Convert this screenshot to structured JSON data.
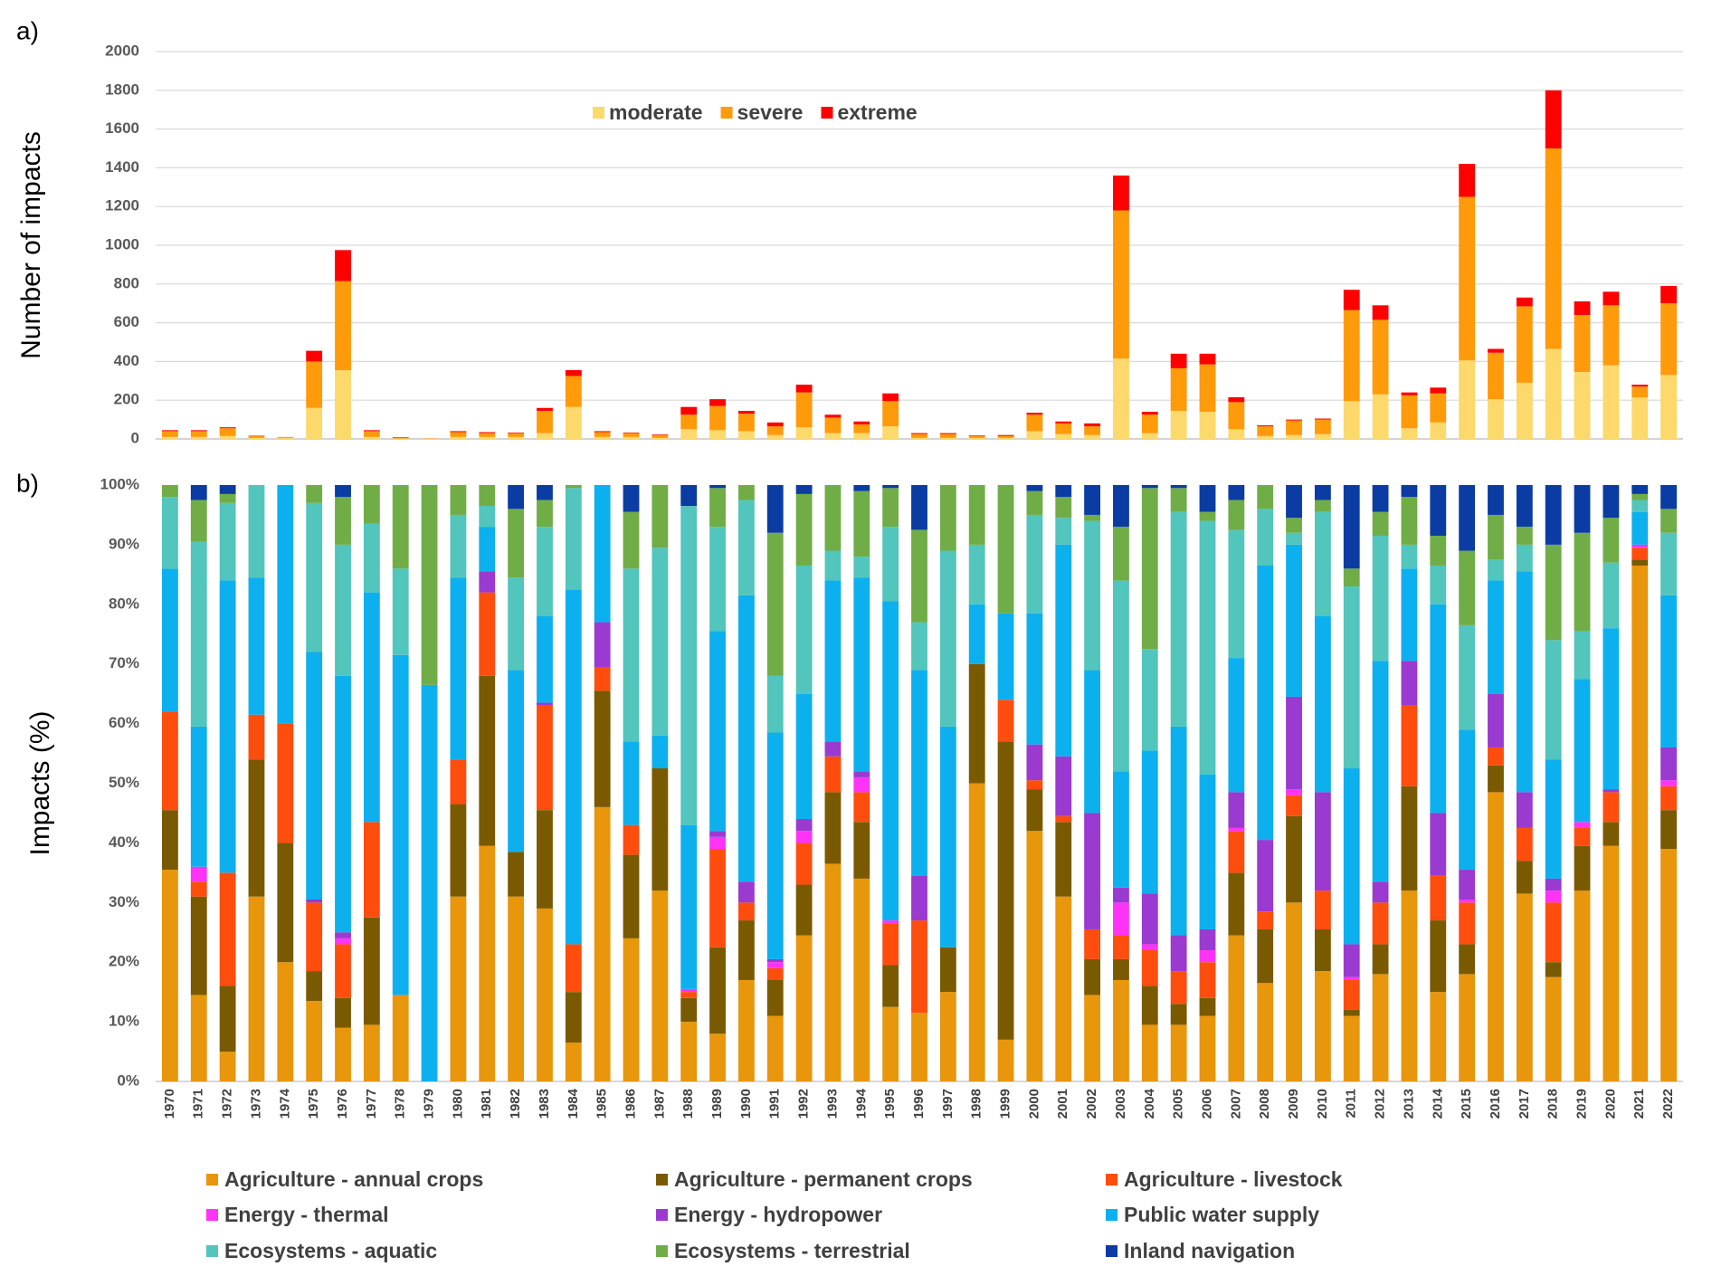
{
  "chart_data": [
    {
      "type": "bar",
      "stacked": true,
      "panel_label": "a)",
      "y_label": "Number of impacts",
      "ylim": [
        0,
        2000
      ],
      "yticks": [
        0,
        200,
        400,
        600,
        800,
        1000,
        1200,
        1400,
        1600,
        1800,
        2000
      ],
      "grid": true,
      "legend": "top",
      "series": [
        {
          "name": "moderate",
          "color": "#fdd86a",
          "values": [
            10,
            10,
            15,
            5,
            5,
            160,
            355,
            10,
            2,
            0,
            10,
            10,
            10,
            30,
            165,
            10,
            10,
            5,
            50,
            45,
            40,
            20,
            60,
            30,
            30,
            65,
            5,
            5,
            5,
            5,
            40,
            25,
            20,
            415,
            30,
            145,
            140,
            50,
            15,
            20,
            25,
            195,
            230,
            55,
            85,
            405,
            205,
            290,
            465,
            345,
            380,
            215,
            330
          ]
        },
        {
          "name": "severe",
          "color": "#ff9a0a",
          "values": [
            30,
            30,
            40,
            10,
            5,
            240,
            460,
            30,
            5,
            2,
            25,
            20,
            20,
            115,
            160,
            25,
            20,
            15,
            75,
            125,
            90,
            45,
            180,
            80,
            45,
            130,
            20,
            20,
            10,
            10,
            85,
            55,
            45,
            765,
            95,
            220,
            245,
            140,
            50,
            75,
            75,
            470,
            385,
            170,
            150,
            845,
            240,
            395,
            1035,
            295,
            310,
            55,
            370
          ]
        },
        {
          "name": "extreme",
          "color": "#ff0000",
          "values": [
            5,
            5,
            5,
            2,
            0,
            55,
            160,
            5,
            2,
            0,
            5,
            5,
            3,
            15,
            30,
            5,
            3,
            3,
            40,
            35,
            15,
            20,
            40,
            15,
            15,
            40,
            5,
            5,
            3,
            5,
            10,
            10,
            15,
            180,
            15,
            75,
            55,
            25,
            5,
            5,
            5,
            105,
            75,
            15,
            30,
            170,
            20,
            45,
            300,
            70,
            70,
            10,
            90
          ]
        }
      ]
    },
    {
      "type": "bar",
      "stacked": true,
      "panel_label": "b)",
      "y_label": "Impacts (%)",
      "categories": [
        "1970",
        "1971",
        "1972",
        "1973",
        "1974",
        "1975",
        "1976",
        "1977",
        "1978",
        "1979",
        "1980",
        "1981",
        "1982",
        "1983",
        "1984",
        "1985",
        "1986",
        "1987",
        "1988",
        "1989",
        "1990",
        "1991",
        "1992",
        "1993",
        "1994",
        "1995",
        "1996",
        "1997",
        "1998",
        "1999",
        "2000",
        "2001",
        "2002",
        "2003",
        "2004",
        "2005",
        "2006",
        "2007",
        "2008",
        "2009",
        "2010",
        "2011",
        "2012",
        "2013",
        "2014",
        "2015",
        "2016",
        "2017",
        "2018",
        "2019",
        "2020",
        "2021",
        "2022"
      ],
      "ylim": [
        0,
        100
      ],
      "yticks": [
        {
          "value": 0,
          "label": "0%"
        },
        {
          "value": 10,
          "label": "10%"
        },
        {
          "value": 20,
          "label": "20%"
        },
        {
          "value": 30,
          "label": "30%"
        },
        {
          "value": 40,
          "label": "40%"
        },
        {
          "value": 50,
          "label": "50%"
        },
        {
          "value": 60,
          "label": "60%"
        },
        {
          "value": 70,
          "label": "70%"
        },
        {
          "value": 80,
          "label": "80%"
        },
        {
          "value": 90,
          "label": "90%"
        },
        {
          "value": 100,
          "label": "100%"
        }
      ],
      "grid": false,
      "legend": "bottom",
      "series": [
        {
          "name": "Agriculture - annual crops",
          "color": "#e8960c",
          "values": [
            35.5,
            14.5,
            5,
            31,
            20,
            13.5,
            9,
            9.5,
            14.5,
            0,
            31,
            39.5,
            31,
            29,
            6.5,
            46,
            24,
            32,
            10,
            8,
            17,
            11,
            24.5,
            36.5,
            34,
            12.5,
            11.5,
            15,
            50,
            7,
            42,
            31,
            14.5,
            17,
            9.5,
            9.5,
            11,
            24.5,
            16.5,
            30,
            18.5,
            11,
            18,
            32,
            15,
            18,
            48.5,
            31.5,
            17.5,
            32,
            39.5,
            86.5,
            39
          ]
        },
        {
          "name": "Agriculture - permanent crops",
          "color": "#7a5a00",
          "values": [
            10,
            16.5,
            11,
            23,
            20,
            5,
            5,
            18,
            0,
            0,
            15.5,
            28.5,
            7.5,
            16.5,
            8.5,
            19.5,
            14,
            20.5,
            4,
            14.5,
            10,
            6,
            8.5,
            12,
            9.5,
            7,
            0,
            7.5,
            20,
            50,
            7,
            12.5,
            6,
            3.5,
            6.5,
            3.5,
            3,
            10.5,
            9,
            14.5,
            7,
            1,
            5,
            17.5,
            12,
            5,
            4.5,
            5.5,
            2.5,
            7.5,
            4,
            1,
            6.5
          ]
        },
        {
          "name": "Agriculture - livestock",
          "color": "#ff4d0d",
          "values": [
            16.5,
            2.5,
            19,
            7.5,
            20,
            11.5,
            9,
            16,
            0,
            0,
            7.5,
            14,
            0,
            17.5,
            8,
            4,
            5,
            0,
            1,
            16.5,
            3,
            2,
            7,
            6,
            5,
            7,
            15.5,
            0,
            0,
            7,
            1.5,
            1,
            5,
            4,
            6,
            5.5,
            6,
            7,
            3,
            3.5,
            6.5,
            5,
            7,
            13.5,
            7.5,
            7,
            3,
            5.5,
            10,
            3,
            5,
            2,
            4
          ]
        },
        {
          "name": "Energy - thermal",
          "color": "#ff33f5",
          "values": [
            0,
            2.5,
            0,
            0,
            0,
            0,
            1,
            0,
            0,
            0,
            0,
            0,
            0,
            0,
            0,
            0,
            0,
            0,
            0.5,
            2,
            0,
            1,
            2,
            0,
            2.5,
            0.5,
            0,
            0,
            0,
            0,
            0,
            0,
            0,
            5.5,
            1,
            0,
            2,
            0.5,
            0,
            1,
            0,
            0.5,
            0,
            0,
            0,
            0.5,
            0,
            0,
            2,
            1,
            0,
            0.5,
            1
          ]
        },
        {
          "name": "Energy - hydropower",
          "color": "#9a3ad0",
          "values": [
            0,
            0,
            0,
            0,
            0,
            0.5,
            1,
            0,
            0,
            0,
            0,
            3.5,
            0,
            0.5,
            0,
            7.5,
            0,
            0,
            0,
            1,
            3.5,
            0.5,
            2,
            2.5,
            1,
            0,
            7.5,
            0,
            0,
            0,
            6,
            10,
            19.5,
            2.5,
            8.5,
            6,
            3.5,
            6,
            12,
            15.5,
            16.5,
            5.5,
            3.5,
            7.5,
            10.5,
            5,
            9,
            6,
            2,
            0,
            0.5,
            0,
            5.5
          ]
        },
        {
          "name": "Public water supply",
          "color": "#0db0ee",
          "values": [
            24,
            23.5,
            49,
            23,
            40,
            41.5,
            43,
            38.5,
            57,
            66.5,
            30.5,
            7.5,
            30.5,
            14.5,
            59.5,
            23,
            14,
            5.5,
            27.5,
            33.5,
            48,
            38,
            21,
            27,
            32.5,
            53.5,
            34.5,
            37,
            10,
            14.5,
            22,
            35.5,
            24,
            19.5,
            24,
            35,
            26,
            22.5,
            46,
            25.5,
            29.5,
            29.5,
            37,
            15.5,
            35,
            23.5,
            19,
            37,
            20,
            24,
            27,
            5.5,
            25.5
          ]
        },
        {
          "name": "Ecosystems - aquatic",
          "color": "#52c5bd",
          "values": [
            12,
            31,
            13,
            15.5,
            0,
            25,
            22,
            11.5,
            14.5,
            0,
            10.5,
            3.5,
            15.5,
            15,
            17,
            0,
            29,
            31.5,
            53.5,
            17.5,
            16,
            9.5,
            21.5,
            5,
            3.5,
            12.5,
            8,
            29.5,
            10,
            0,
            16.5,
            4.5,
            25,
            32,
            17,
            36,
            42.5,
            21.5,
            9.5,
            2,
            17.5,
            30.5,
            21,
            4,
            6.5,
            17.5,
            3.5,
            4.5,
            20,
            8,
            11,
            2,
            10.5
          ]
        },
        {
          "name": "Ecosystems - terrestrial",
          "color": "#70ad47",
          "values": [
            2,
            7,
            1.5,
            0,
            0,
            3,
            8,
            6.5,
            14,
            33.5,
            5,
            3.5,
            11.5,
            4.5,
            0.5,
            0,
            9.5,
            10.5,
            0,
            6.5,
            2.5,
            24,
            12,
            11,
            11,
            6.5,
            15.5,
            11,
            10,
            21.5,
            4,
            3.5,
            1,
            9,
            27,
            4,
            1.5,
            5,
            4,
            2.5,
            2,
            3,
            4,
            8,
            5,
            12.5,
            7.5,
            3,
            16,
            16.5,
            7.5,
            1,
            4
          ]
        },
        {
          "name": "Inland navigation",
          "color": "#0a3ca3",
          "values": [
            0,
            2.5,
            1.5,
            0,
            0,
            0,
            2,
            0,
            0,
            0,
            0,
            0,
            4,
            2.5,
            0,
            0,
            4.5,
            0,
            3.5,
            0.5,
            0,
            8,
            1.5,
            0,
            1,
            0.5,
            7.5,
            0,
            0,
            0,
            1,
            2,
            5,
            7,
            0.5,
            0.5,
            4.5,
            2.5,
            0,
            5.5,
            2.5,
            14,
            4.5,
            2,
            8.5,
            11,
            5,
            7,
            10,
            8,
            5.5,
            1.5,
            4
          ]
        }
      ]
    }
  ]
}
